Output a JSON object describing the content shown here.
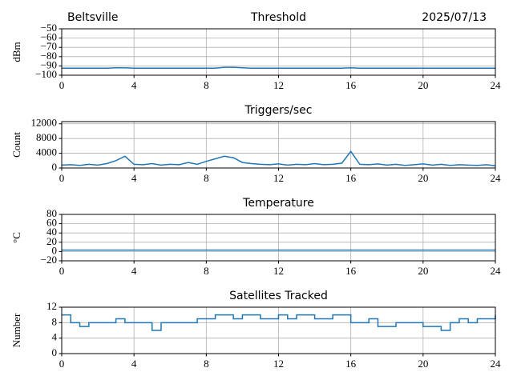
{
  "chart_data": [
    {
      "type": "line",
      "title": "Threshold",
      "location": "Beltsville",
      "date": "2025/07/13",
      "ylabel": "dBm",
      "color": "#1f77b4",
      "grid": true,
      "xlim": [
        0,
        24
      ],
      "xticks": [
        0,
        4,
        8,
        12,
        16,
        20,
        24
      ],
      "ylim": [
        -100,
        -50
      ],
      "yticks": [
        {
          "value": -100,
          "label": "−100"
        },
        {
          "value": -90,
          "label": "−90"
        },
        {
          "value": -80,
          "label": "−80"
        },
        {
          "value": -70,
          "label": "−70"
        },
        {
          "value": -60,
          "label": "−60"
        },
        {
          "value": -50,
          "label": "−50"
        }
      ],
      "x": [
        0,
        0.5,
        1,
        1.5,
        2,
        2.5,
        3,
        3.5,
        4,
        4.5,
        5,
        5.5,
        6,
        6.5,
        7,
        7.5,
        8,
        8.5,
        9,
        9.5,
        10,
        10.5,
        11,
        11.5,
        12,
        12.5,
        13,
        13.5,
        14,
        14.5,
        15,
        15.5,
        16,
        16.5,
        17,
        17.5,
        18,
        18.5,
        19,
        19.5,
        20,
        20.5,
        21,
        21.5,
        22,
        22.5,
        23,
        23.5,
        24
      ],
      "values": [
        -92.5,
        -92.5,
        -92.5,
        -92.5,
        -92.5,
        -92.5,
        -92,
        -92,
        -92.5,
        -92.5,
        -92.5,
        -92.5,
        -92.5,
        -92.5,
        -92.5,
        -92.5,
        -92.5,
        -92.5,
        -91.5,
        -91.5,
        -92,
        -92.5,
        -92.5,
        -92.5,
        -92.5,
        -92.5,
        -92.5,
        -92.5,
        -92.5,
        -92.5,
        -92.5,
        -92.5,
        -92,
        -92.5,
        -92.5,
        -92.5,
        -92.5,
        -92.5,
        -92.5,
        -92.5,
        -92.5,
        -92.5,
        -92.5,
        -92.5,
        -92.5,
        -92.5,
        -92.5,
        -92.5,
        -92.5
      ]
    },
    {
      "type": "line",
      "title": "Triggers/sec",
      "ylabel": "Count",
      "color": "#1f77b4",
      "grid": true,
      "xlim": [
        0,
        24
      ],
      "xticks": [
        0,
        4,
        8,
        12,
        16,
        20,
        24
      ],
      "ylim": [
        0,
        12600
      ],
      "yticks": [
        0,
        4000,
        8000,
        12000
      ],
      "x": [
        0,
        0.5,
        1,
        1.5,
        2,
        2.5,
        3,
        3.5,
        4,
        4.5,
        5,
        5.5,
        6,
        6.5,
        7,
        7.5,
        8,
        8.5,
        9,
        9.5,
        10,
        10.5,
        11,
        11.5,
        12,
        12.5,
        13,
        13.5,
        14,
        14.5,
        15,
        15.5,
        16,
        16.5,
        17,
        17.5,
        18,
        18.5,
        19,
        19.5,
        20,
        20.5,
        21,
        21.5,
        22,
        22.5,
        23,
        23.5,
        24
      ],
      "values": [
        800,
        900,
        700,
        1000,
        800,
        1200,
        2000,
        3200,
        1000,
        900,
        1200,
        800,
        1000,
        900,
        1500,
        1000,
        1800,
        2500,
        3200,
        2800,
        1500,
        1200,
        1000,
        900,
        1100,
        800,
        1000,
        900,
        1200,
        900,
        1000,
        1300,
        4500,
        1000,
        900,
        1100,
        800,
        1000,
        700,
        900,
        1100,
        800,
        1000,
        700,
        900,
        800,
        700,
        900,
        600
      ]
    },
    {
      "type": "line",
      "title": "Temperature",
      "ylabel": "°C",
      "color": "#1f77b4",
      "grid": true,
      "xlim": [
        0,
        24
      ],
      "xticks": [
        0,
        4,
        8,
        12,
        16,
        20,
        24
      ],
      "ylim": [
        -20,
        80
      ],
      "yticks": [
        {
          "value": -20,
          "label": "−20"
        },
        0,
        20,
        40,
        60,
        80
      ],
      "x": [
        0,
        0.5,
        1,
        1.5,
        2,
        2.5,
        3,
        3.5,
        4,
        4.5,
        5,
        5.5,
        6,
        6.5,
        7,
        7.5,
        8,
        8.5,
        9,
        9.5,
        10,
        10.5,
        11,
        11.5,
        12,
        12.5,
        13,
        13.5,
        14,
        14.5,
        15,
        15.5,
        16,
        16.5,
        17,
        17.5,
        18,
        18.5,
        19,
        19.5,
        20,
        20.5,
        21,
        21.5,
        22,
        22.5,
        23,
        23.5,
        24
      ],
      "values": [
        3,
        3,
        3,
        3,
        3,
        3,
        3,
        3,
        3,
        3,
        3,
        3,
        3,
        3,
        3,
        3,
        3,
        3,
        3,
        3,
        3,
        3,
        3,
        3,
        3,
        3,
        3,
        3,
        3,
        3,
        3,
        3,
        3,
        3,
        3,
        3,
        3,
        3,
        3,
        3,
        3,
        3,
        3,
        3,
        3,
        3,
        3,
        3,
        3
      ]
    },
    {
      "type": "line",
      "title": "Satellites Tracked",
      "ylabel": "Number",
      "color": "#1f77b4",
      "grid": true,
      "drawstyle": "steps",
      "xlim": [
        0,
        24
      ],
      "xticks": [
        0,
        4,
        8,
        12,
        16,
        20,
        24
      ],
      "ylim": [
        0,
        12
      ],
      "yticks": [
        0,
        4,
        8,
        12
      ],
      "x": [
        0,
        0.5,
        1,
        1.5,
        2,
        2.5,
        3,
        3.5,
        4,
        4.5,
        5,
        5.5,
        6,
        6.5,
        7,
        7.5,
        8,
        8.5,
        9,
        9.5,
        10,
        10.5,
        11,
        11.5,
        12,
        12.5,
        13,
        13.5,
        14,
        14.5,
        15,
        15.5,
        16,
        16.5,
        17,
        17.5,
        18,
        18.5,
        19,
        19.5,
        20,
        20.5,
        21,
        21.5,
        22,
        22.5,
        23,
        23.5,
        24
      ],
      "values": [
        10,
        8,
        7,
        8,
        8,
        8,
        9,
        8,
        8,
        8,
        6,
        8,
        8,
        8,
        8,
        9,
        9,
        10,
        10,
        9,
        10,
        10,
        9,
        9,
        10,
        9,
        10,
        10,
        9,
        9,
        10,
        10,
        8,
        8,
        9,
        7,
        7,
        8,
        8,
        8,
        7,
        7,
        6,
        8,
        9,
        8,
        9,
        9,
        10
      ]
    }
  ]
}
